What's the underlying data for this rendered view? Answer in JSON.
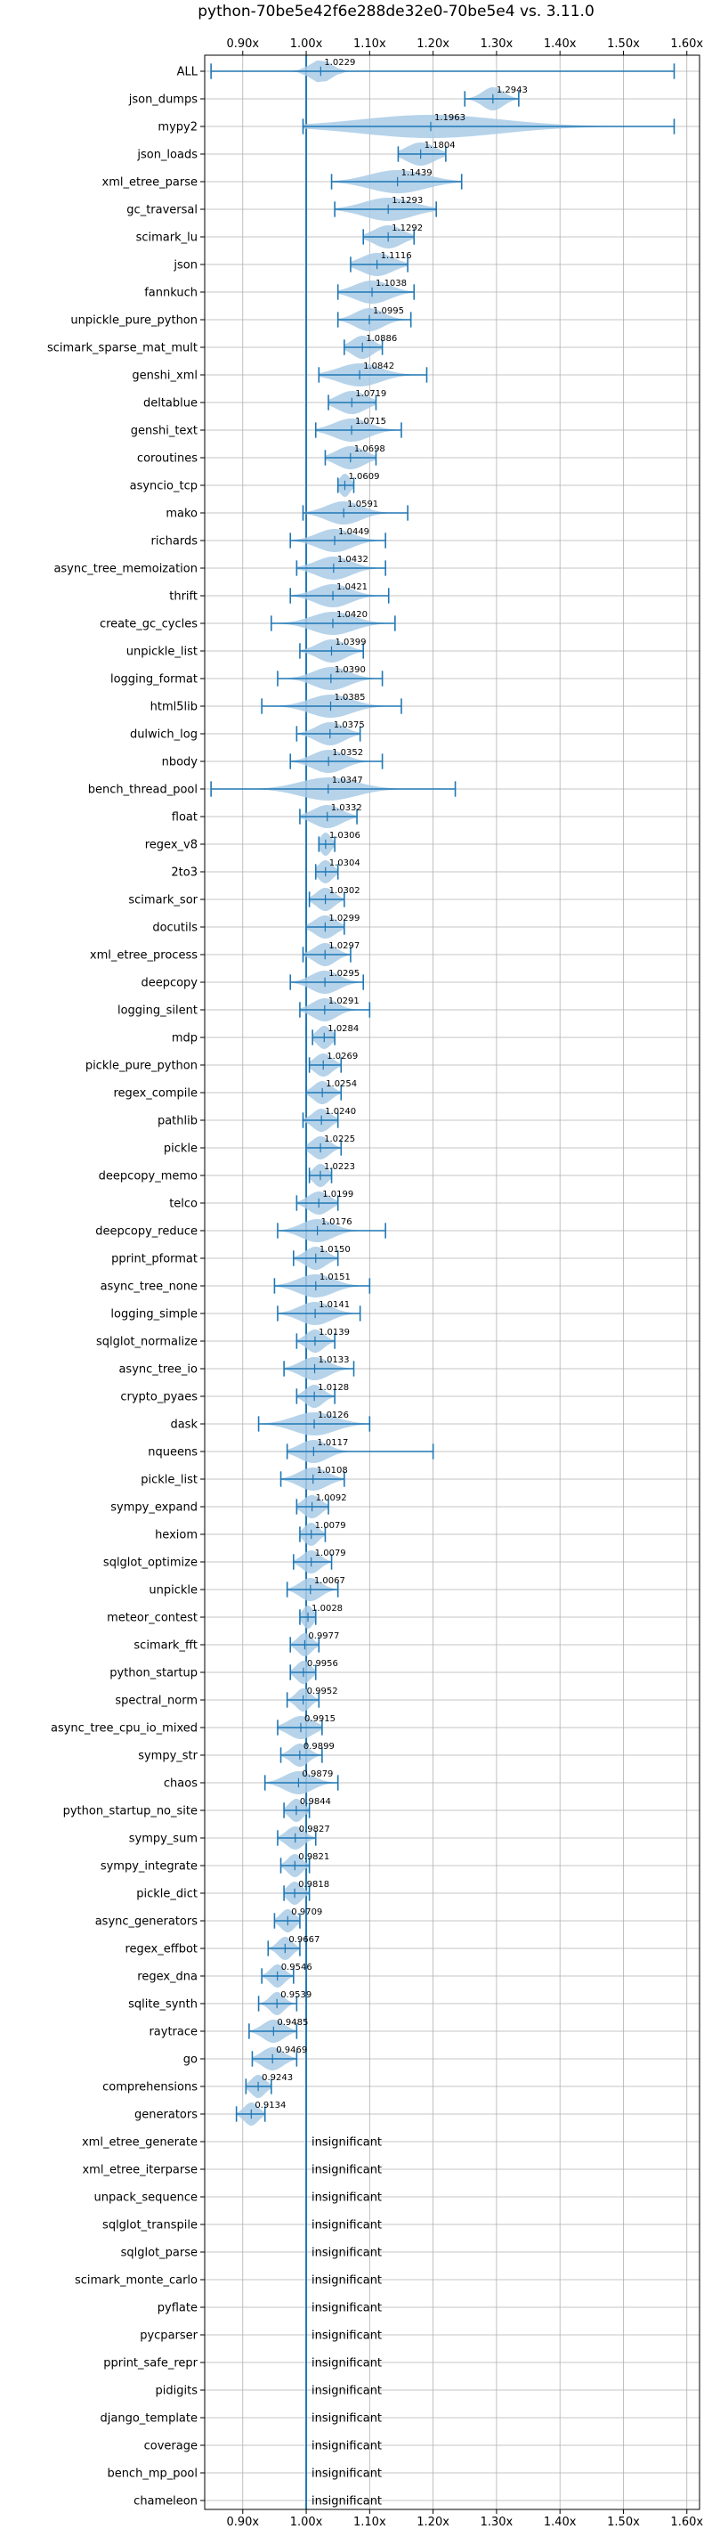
{
  "chart_data": {
    "type": "violin",
    "title": "python-70be5e42f6e288de32e0-70be5e4 vs. 3.11.0",
    "orientation": "horizontal",
    "xlim": [
      0.84,
      1.62
    ],
    "xticks": [
      0.9,
      1.0,
      1.1,
      1.2,
      1.3,
      1.4,
      1.5,
      1.6
    ],
    "xtick_labels": [
      "0.90x",
      "1.00x",
      "1.10x",
      "1.20x",
      "1.30x",
      "1.40x",
      "1.50x",
      "1.60x"
    ],
    "xaxis_position": "top and bottom",
    "reference_line": 1.0,
    "grid": true,
    "insignificant_label": "insignificant",
    "benchmarks": [
      {
        "name": "ALL",
        "value": 1.0229,
        "lo": 0.85,
        "hi": 1.58,
        "spread": 0.03
      },
      {
        "name": "json_dumps",
        "value": 1.2943,
        "lo": 1.25,
        "hi": 1.335,
        "spread": 0.03
      },
      {
        "name": "mypy2",
        "value": 1.1963,
        "lo": 0.995,
        "hi": 1.58,
        "spread": 0.2
      },
      {
        "name": "json_loads",
        "value": 1.1804,
        "lo": 1.145,
        "hi": 1.22,
        "spread": 0.04
      },
      {
        "name": "xml_etree_parse",
        "value": 1.1439,
        "lo": 1.04,
        "hi": 1.245,
        "spread": 0.08
      },
      {
        "name": "gc_traversal",
        "value": 1.1293,
        "lo": 1.045,
        "hi": 1.205,
        "spread": 0.07
      },
      {
        "name": "scimark_lu",
        "value": 1.1292,
        "lo": 1.09,
        "hi": 1.17,
        "spread": 0.04
      },
      {
        "name": "json",
        "value": 1.1116,
        "lo": 1.07,
        "hi": 1.16,
        "spread": 0.045
      },
      {
        "name": "fannkuch",
        "value": 1.1038,
        "lo": 1.05,
        "hi": 1.17,
        "spread": 0.05
      },
      {
        "name": "unpickle_pure_python",
        "value": 1.0995,
        "lo": 1.05,
        "hi": 1.165,
        "spread": 0.04
      },
      {
        "name": "scimark_sparse_mat_mult",
        "value": 1.0886,
        "lo": 1.06,
        "hi": 1.12,
        "spread": 0.03
      },
      {
        "name": "genshi_xml",
        "value": 1.0842,
        "lo": 1.02,
        "hi": 1.19,
        "spread": 0.06
      },
      {
        "name": "deltablue",
        "value": 1.0719,
        "lo": 1.035,
        "hi": 1.11,
        "spread": 0.04
      },
      {
        "name": "genshi_text",
        "value": 1.0715,
        "lo": 1.015,
        "hi": 1.15,
        "spread": 0.05
      },
      {
        "name": "coroutines",
        "value": 1.0698,
        "lo": 1.03,
        "hi": 1.11,
        "spread": 0.04
      },
      {
        "name": "asyncio_tcp",
        "value": 1.0609,
        "lo": 1.05,
        "hi": 1.075,
        "spread": 0.015
      },
      {
        "name": "mako",
        "value": 1.0591,
        "lo": 0.995,
        "hi": 1.16,
        "spread": 0.05
      },
      {
        "name": "richards",
        "value": 1.0449,
        "lo": 0.975,
        "hi": 1.125,
        "spread": 0.05
      },
      {
        "name": "async_tree_memoization",
        "value": 1.0432,
        "lo": 0.985,
        "hi": 1.125,
        "spread": 0.05
      },
      {
        "name": "thrift",
        "value": 1.0421,
        "lo": 0.975,
        "hi": 1.13,
        "spread": 0.05
      },
      {
        "name": "create_gc_cycles",
        "value": 1.042,
        "lo": 0.945,
        "hi": 1.14,
        "spread": 0.06
      },
      {
        "name": "unpickle_list",
        "value": 1.0399,
        "lo": 0.99,
        "hi": 1.09,
        "spread": 0.04
      },
      {
        "name": "logging_format",
        "value": 1.039,
        "lo": 0.955,
        "hi": 1.12,
        "spread": 0.05
      },
      {
        "name": "html5lib",
        "value": 1.0385,
        "lo": 0.93,
        "hi": 1.15,
        "spread": 0.06
      },
      {
        "name": "dulwich_log",
        "value": 1.0375,
        "lo": 0.985,
        "hi": 1.085,
        "spread": 0.04
      },
      {
        "name": "nbody",
        "value": 1.0352,
        "lo": 0.975,
        "hi": 1.12,
        "spread": 0.045
      },
      {
        "name": "bench_thread_pool",
        "value": 1.0347,
        "lo": 0.85,
        "hi": 1.235,
        "spread": 0.08
      },
      {
        "name": "float",
        "value": 1.0332,
        "lo": 0.99,
        "hi": 1.08,
        "spread": 0.04
      },
      {
        "name": "regex_v8",
        "value": 1.0306,
        "lo": 1.02,
        "hi": 1.045,
        "spread": 0.015
      },
      {
        "name": "2to3",
        "value": 1.0304,
        "lo": 1.015,
        "hi": 1.05,
        "spread": 0.02
      },
      {
        "name": "scimark_sor",
        "value": 1.0302,
        "lo": 1.005,
        "hi": 1.06,
        "spread": 0.025
      },
      {
        "name": "docutils",
        "value": 1.0299,
        "lo": 1.0,
        "hi": 1.06,
        "spread": 0.03
      },
      {
        "name": "xml_etree_process",
        "value": 1.0297,
        "lo": 0.995,
        "hi": 1.07,
        "spread": 0.03
      },
      {
        "name": "deepcopy",
        "value": 1.0295,
        "lo": 0.975,
        "hi": 1.09,
        "spread": 0.04
      },
      {
        "name": "logging_silent",
        "value": 1.0291,
        "lo": 0.99,
        "hi": 1.1,
        "spread": 0.035
      },
      {
        "name": "mdp",
        "value": 1.0284,
        "lo": 1.01,
        "hi": 1.045,
        "spread": 0.02
      },
      {
        "name": "pickle_pure_python",
        "value": 1.0269,
        "lo": 1.005,
        "hi": 1.055,
        "spread": 0.025
      },
      {
        "name": "regex_compile",
        "value": 1.0254,
        "lo": 1.0,
        "hi": 1.055,
        "spread": 0.025
      },
      {
        "name": "pathlib",
        "value": 1.024,
        "lo": 0.995,
        "hi": 1.05,
        "spread": 0.025
      },
      {
        "name": "pickle",
        "value": 1.0225,
        "lo": 1.0,
        "hi": 1.055,
        "spread": 0.025
      },
      {
        "name": "deepcopy_memo",
        "value": 1.0223,
        "lo": 1.005,
        "hi": 1.04,
        "spread": 0.02
      },
      {
        "name": "telco",
        "value": 1.0199,
        "lo": 0.985,
        "hi": 1.05,
        "spread": 0.03
      },
      {
        "name": "deepcopy_reduce",
        "value": 1.0176,
        "lo": 0.955,
        "hi": 1.125,
        "spread": 0.045
      },
      {
        "name": "pprint_pformat",
        "value": 1.015,
        "lo": 0.98,
        "hi": 1.05,
        "spread": 0.03
      },
      {
        "name": "async_tree_none",
        "value": 1.0151,
        "lo": 0.95,
        "hi": 1.1,
        "spread": 0.05
      },
      {
        "name": "logging_simple",
        "value": 1.0141,
        "lo": 0.955,
        "hi": 1.085,
        "spread": 0.045
      },
      {
        "name": "sqlglot_normalize",
        "value": 1.0139,
        "lo": 0.985,
        "hi": 1.045,
        "spread": 0.025
      },
      {
        "name": "async_tree_io",
        "value": 1.0133,
        "lo": 0.965,
        "hi": 1.075,
        "spread": 0.04
      },
      {
        "name": "crypto_pyaes",
        "value": 1.0128,
        "lo": 0.985,
        "hi": 1.045,
        "spread": 0.025
      },
      {
        "name": "dask",
        "value": 1.0126,
        "lo": 0.925,
        "hi": 1.1,
        "spread": 0.06
      },
      {
        "name": "nqueens",
        "value": 1.0117,
        "lo": 0.97,
        "hi": 1.2,
        "spread": 0.04
      },
      {
        "name": "pickle_list",
        "value": 1.0108,
        "lo": 0.96,
        "hi": 1.06,
        "spread": 0.04
      },
      {
        "name": "sympy_expand",
        "value": 1.0092,
        "lo": 0.985,
        "hi": 1.035,
        "spread": 0.025
      },
      {
        "name": "hexiom",
        "value": 1.0079,
        "lo": 0.99,
        "hi": 1.03,
        "spread": 0.02
      },
      {
        "name": "sqlglot_optimize",
        "value": 1.0079,
        "lo": 0.98,
        "hi": 1.04,
        "spread": 0.025
      },
      {
        "name": "unpickle",
        "value": 1.0067,
        "lo": 0.97,
        "hi": 1.05,
        "spread": 0.03
      },
      {
        "name": "meteor_contest",
        "value": 1.0028,
        "lo": 0.99,
        "hi": 1.015,
        "spread": 0.015
      },
      {
        "name": "scimark_fft",
        "value": 0.9977,
        "lo": 0.975,
        "hi": 1.02,
        "spread": 0.02
      },
      {
        "name": "python_startup",
        "value": 0.9956,
        "lo": 0.975,
        "hi": 1.015,
        "spread": 0.02
      },
      {
        "name": "spectral_norm",
        "value": 0.9952,
        "lo": 0.97,
        "hi": 1.02,
        "spread": 0.02
      },
      {
        "name": "async_tree_cpu_io_mixed",
        "value": 0.9915,
        "lo": 0.955,
        "hi": 1.025,
        "spread": 0.035
      },
      {
        "name": "sympy_str",
        "value": 0.9899,
        "lo": 0.96,
        "hi": 1.025,
        "spread": 0.025
      },
      {
        "name": "chaos",
        "value": 0.9879,
        "lo": 0.935,
        "hi": 1.05,
        "spread": 0.04
      },
      {
        "name": "python_startup_no_site",
        "value": 0.9844,
        "lo": 0.965,
        "hi": 1.005,
        "spread": 0.02
      },
      {
        "name": "sympy_sum",
        "value": 0.9827,
        "lo": 0.955,
        "hi": 1.015,
        "spread": 0.025
      },
      {
        "name": "sympy_integrate",
        "value": 0.9821,
        "lo": 0.96,
        "hi": 1.005,
        "spread": 0.02
      },
      {
        "name": "pickle_dict",
        "value": 0.9818,
        "lo": 0.965,
        "hi": 1.005,
        "spread": 0.02
      },
      {
        "name": "async_generators",
        "value": 0.9709,
        "lo": 0.95,
        "hi": 0.99,
        "spread": 0.02
      },
      {
        "name": "regex_effbot",
        "value": 0.9667,
        "lo": 0.94,
        "hi": 0.99,
        "spread": 0.02
      },
      {
        "name": "regex_dna",
        "value": 0.9546,
        "lo": 0.93,
        "hi": 0.98,
        "spread": 0.02
      },
      {
        "name": "sqlite_synth",
        "value": 0.9539,
        "lo": 0.925,
        "hi": 0.985,
        "spread": 0.02
      },
      {
        "name": "raytrace",
        "value": 0.9485,
        "lo": 0.91,
        "hi": 0.985,
        "spread": 0.03
      },
      {
        "name": "go",
        "value": 0.9469,
        "lo": 0.915,
        "hi": 0.985,
        "spread": 0.03
      },
      {
        "name": "comprehensions",
        "value": 0.9243,
        "lo": 0.905,
        "hi": 0.945,
        "spread": 0.02
      },
      {
        "name": "generators",
        "value": 0.9134,
        "lo": 0.89,
        "hi": 0.935,
        "spread": 0.02
      },
      {
        "name": "xml_etree_generate",
        "value": null
      },
      {
        "name": "xml_etree_iterparse",
        "value": null
      },
      {
        "name": "unpack_sequence",
        "value": null
      },
      {
        "name": "sqlglot_transpile",
        "value": null
      },
      {
        "name": "sqlglot_parse",
        "value": null
      },
      {
        "name": "scimark_monte_carlo",
        "value": null
      },
      {
        "name": "pyflate",
        "value": null
      },
      {
        "name": "pycparser",
        "value": null
      },
      {
        "name": "pprint_safe_repr",
        "value": null
      },
      {
        "name": "pidigits",
        "value": null
      },
      {
        "name": "django_template",
        "value": null
      },
      {
        "name": "coverage",
        "value": null
      },
      {
        "name": "bench_mp_pool",
        "value": null
      },
      {
        "name": "chameleon",
        "value": null
      }
    ]
  },
  "colors": {
    "violin_fill": "#a9cbe6",
    "bar_line": "#1f77b4",
    "grid": "#b0b0b0",
    "axis": "#000000"
  }
}
